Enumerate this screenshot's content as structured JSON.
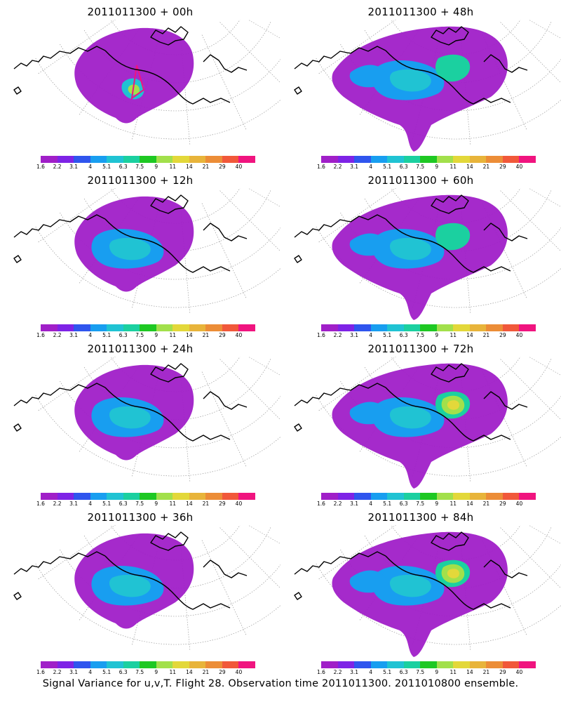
{
  "caption": "Signal Variance for u,v,T. Flight 28. Observation time 2011011300. 2011010800 ensemble.",
  "colorbar": {
    "labels": [
      "1.6",
      "2.2",
      "3.1",
      "4",
      "5.1",
      "6.3",
      "7.5",
      "9",
      "11",
      "14",
      "21",
      "29",
      "40"
    ],
    "colors": [
      "#a01fc8",
      "#7e23e6",
      "#2f55ee",
      "#189ef0",
      "#20c3d3",
      "#1bd0a0",
      "#1ec823",
      "#a2e04b",
      "#e3d83a",
      "#e8b43a",
      "#ec8d37",
      "#f1583a",
      "#f0147f"
    ]
  },
  "panels": [
    {
      "title": "2011011300 + 00h",
      "level": 1
    },
    {
      "title": "2011011300 + 48h",
      "level": 3
    },
    {
      "title": "2011011300 + 12h",
      "level": 2
    },
    {
      "title": "2011011300 + 60h",
      "level": 3
    },
    {
      "title": "2011011300 + 24h",
      "level": 2
    },
    {
      "title": "2011011300 + 72h",
      "level": 4
    },
    {
      "title": "2011011300 + 36h",
      "level": 2
    },
    {
      "title": "2011011300 + 84h",
      "level": 4
    }
  ]
}
